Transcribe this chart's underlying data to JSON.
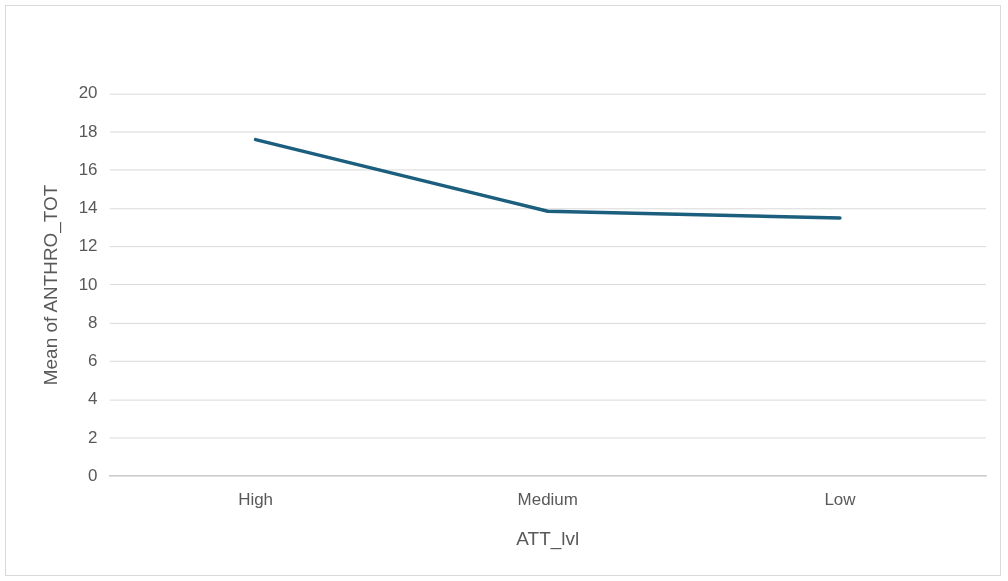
{
  "chart_data": {
    "type": "line",
    "xlabel": "ATT_lvl",
    "ylabel": "Mean of ANTHRO_TOT",
    "categories": [
      "High",
      "Medium",
      "Low"
    ],
    "series": [
      {
        "color": "#1b5e7d",
        "values": [
          17.6,
          13.85,
          13.5
        ]
      }
    ],
    "ylim": [
      0,
      20
    ],
    "yticks": [
      0,
      2,
      4,
      6,
      8,
      10,
      12,
      14,
      16,
      18,
      20
    ],
    "grid": "y",
    "legend": false,
    "marker": "none",
    "line_style": "solid"
  }
}
